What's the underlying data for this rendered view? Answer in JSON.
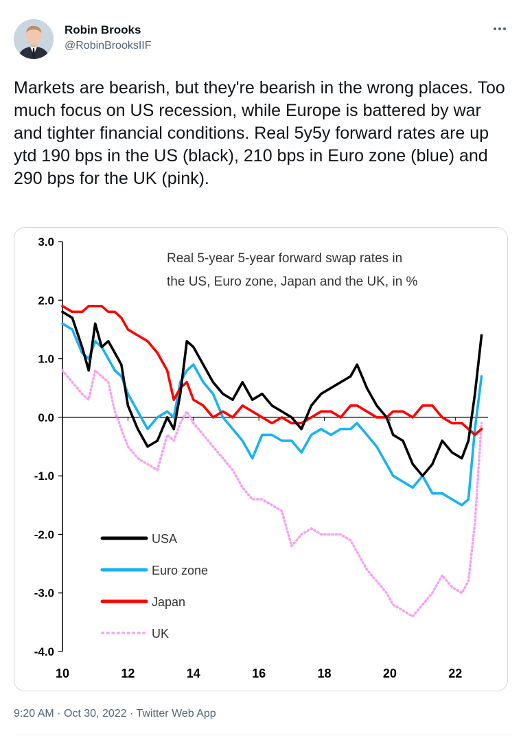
{
  "author": {
    "name": "Robin Brooks",
    "handle": "@RobinBrooksIIF"
  },
  "more_icon": "more-horizontal-icon",
  "tweet": {
    "text": "Markets are bearish, but they're bearish in the wrong places. Too much focus on US recession, while Europe is battered by war and tighter financial conditions. Real 5y5y forward rates are up ytd 190 bps in the US (black), 210 bps in Euro zone (blue) and 290 bps for the UK (pink).",
    "time": "9:20 AM",
    "date": "Oct 30, 2022",
    "separator": "·",
    "source": "Twitter Web App"
  },
  "chart_data": {
    "type": "line",
    "title_lines": [
      "Real 5-year 5-year forward swap rates in",
      "the US, Euro zone, Japan and the UK, in %"
    ],
    "y_ticks": [
      "3.0",
      "2.0",
      "1.0",
      "0.0",
      "-1.0",
      "-2.0",
      "-3.0",
      "-4.0"
    ],
    "x_ticks": [
      "10",
      "12",
      "14",
      "16",
      "18",
      "20",
      "22"
    ],
    "ylim": [
      -4,
      3
    ],
    "xlim": [
      10,
      23
    ],
    "legend": [
      "USA",
      "Euro zone",
      "Japan",
      "UK"
    ],
    "legend_placement": "bottom-left",
    "series": [
      {
        "name": "USA",
        "color": "#000000",
        "style": "solid",
        "x": [
          10.0,
          10.3,
          10.6,
          10.8,
          11.0,
          11.2,
          11.4,
          11.6,
          11.8,
          12.0,
          12.3,
          12.6,
          12.9,
          13.2,
          13.4,
          13.6,
          13.8,
          14.0,
          14.3,
          14.6,
          14.9,
          15.2,
          15.5,
          15.8,
          16.1,
          16.4,
          16.7,
          17.0,
          17.3,
          17.6,
          17.9,
          18.2,
          18.5,
          18.8,
          19.0,
          19.3,
          19.6,
          19.9,
          20.1,
          20.4,
          20.7,
          21.0,
          21.3,
          21.6,
          21.9,
          22.2,
          22.4,
          22.6,
          22.8
        ],
        "y": [
          1.8,
          1.7,
          1.2,
          0.8,
          1.6,
          1.2,
          1.3,
          1.1,
          0.9,
          0.2,
          -0.2,
          -0.5,
          -0.4,
          0.0,
          -0.2,
          0.4,
          1.3,
          1.2,
          0.9,
          0.6,
          0.4,
          0.3,
          0.6,
          0.3,
          0.4,
          0.2,
          0.1,
          0.0,
          -0.2,
          0.2,
          0.4,
          0.5,
          0.6,
          0.7,
          0.9,
          0.5,
          0.2,
          0.0,
          -0.3,
          -0.4,
          -0.8,
          -1.0,
          -0.8,
          -0.4,
          -0.6,
          -0.7,
          -0.4,
          0.4,
          1.4
        ]
      },
      {
        "name": "Euro zone",
        "color": "#1ab2ef",
        "style": "solid",
        "x": [
          10.0,
          10.3,
          10.6,
          10.8,
          11.0,
          11.2,
          11.4,
          11.6,
          11.8,
          12.0,
          12.3,
          12.6,
          12.9,
          13.2,
          13.4,
          13.6,
          13.8,
          14.0,
          14.3,
          14.6,
          14.9,
          15.2,
          15.5,
          15.8,
          16.1,
          16.4,
          16.7,
          17.0,
          17.3,
          17.6,
          17.9,
          18.2,
          18.5,
          18.8,
          19.0,
          19.3,
          19.6,
          19.9,
          20.1,
          20.4,
          20.7,
          21.0,
          21.3,
          21.6,
          21.9,
          22.2,
          22.4,
          22.6,
          22.8
        ],
        "y": [
          1.6,
          1.5,
          1.1,
          1.0,
          1.3,
          1.2,
          1.0,
          0.8,
          0.7,
          0.4,
          0.1,
          -0.2,
          0.0,
          0.1,
          0.0,
          0.6,
          0.8,
          0.9,
          0.6,
          0.4,
          0.0,
          -0.2,
          -0.4,
          -0.7,
          -0.3,
          -0.3,
          -0.4,
          -0.4,
          -0.6,
          -0.3,
          -0.2,
          -0.3,
          -0.2,
          -0.2,
          -0.1,
          -0.3,
          -0.5,
          -0.8,
          -1.0,
          -1.1,
          -1.2,
          -1.0,
          -1.3,
          -1.3,
          -1.4,
          -1.5,
          -1.4,
          -0.2,
          0.7
        ]
      },
      {
        "name": "Japan",
        "color": "#ff0000",
        "style": "solid",
        "x": [
          10.0,
          10.3,
          10.6,
          10.8,
          11.0,
          11.2,
          11.4,
          11.6,
          11.8,
          12.0,
          12.3,
          12.6,
          12.9,
          13.2,
          13.4,
          13.6,
          13.8,
          14.0,
          14.3,
          14.6,
          14.9,
          15.2,
          15.5,
          15.8,
          16.1,
          16.4,
          16.7,
          17.0,
          17.3,
          17.6,
          17.9,
          18.2,
          18.5,
          18.8,
          19.0,
          19.3,
          19.6,
          19.9,
          20.1,
          20.4,
          20.7,
          21.0,
          21.3,
          21.6,
          21.9,
          22.2,
          22.4,
          22.6,
          22.8
        ],
        "y": [
          1.9,
          1.8,
          1.8,
          1.9,
          1.9,
          1.9,
          1.8,
          1.8,
          1.7,
          1.5,
          1.4,
          1.3,
          1.1,
          0.8,
          0.3,
          0.5,
          0.6,
          0.3,
          0.2,
          0.0,
          0.1,
          0.0,
          0.2,
          0.1,
          0.0,
          -0.1,
          0.0,
          -0.1,
          -0.1,
          0.0,
          0.1,
          0.1,
          0.0,
          0.2,
          0.2,
          0.1,
          0.0,
          0.0,
          0.1,
          0.1,
          0.0,
          0.2,
          0.2,
          0.0,
          -0.1,
          -0.1,
          -0.2,
          -0.3,
          -0.2
        ]
      },
      {
        "name": "UK",
        "color": "#f7a1f2",
        "style": "dotted",
        "x": [
          10.0,
          10.3,
          10.6,
          10.8,
          11.0,
          11.2,
          11.4,
          11.6,
          11.8,
          12.0,
          12.3,
          12.6,
          12.9,
          13.2,
          13.4,
          13.6,
          13.8,
          14.0,
          14.3,
          14.6,
          14.9,
          15.2,
          15.5,
          15.8,
          16.1,
          16.4,
          16.7,
          17.0,
          17.3,
          17.6,
          17.9,
          18.2,
          18.5,
          18.8,
          19.0,
          19.3,
          19.6,
          19.9,
          20.1,
          20.4,
          20.7,
          21.0,
          21.3,
          21.6,
          21.9,
          22.2,
          22.4,
          22.6,
          22.8
        ],
        "y": [
          0.8,
          0.6,
          0.4,
          0.3,
          0.8,
          0.7,
          0.6,
          0.1,
          -0.2,
          -0.5,
          -0.7,
          -0.8,
          -0.9,
          -0.3,
          -0.4,
          -0.1,
          0.1,
          -0.1,
          -0.3,
          -0.5,
          -0.7,
          -0.9,
          -1.2,
          -1.4,
          -1.4,
          -1.5,
          -1.6,
          -2.2,
          -2.0,
          -1.9,
          -2.0,
          -2.0,
          -2.0,
          -2.1,
          -2.3,
          -2.6,
          -2.8,
          -3.0,
          -3.2,
          -3.3,
          -3.4,
          -3.2,
          -3.0,
          -2.7,
          -2.9,
          -3.0,
          -2.8,
          -1.8,
          -0.1
        ]
      }
    ]
  }
}
